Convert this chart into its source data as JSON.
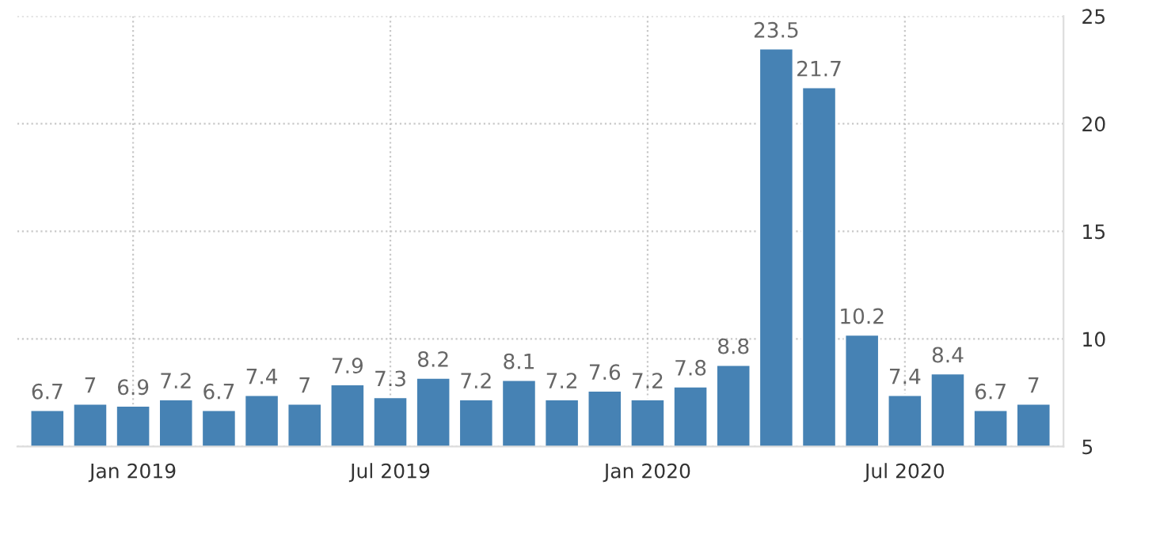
{
  "chart_data": {
    "type": "bar",
    "categories": [
      null,
      null,
      "Jan 2019",
      null,
      null,
      null,
      null,
      null,
      "Jul 2019",
      null,
      null,
      null,
      null,
      null,
      "Jan 2020",
      null,
      null,
      null,
      null,
      null,
      "Jul 2020",
      null,
      null,
      null
    ],
    "values": [
      6.7,
      7,
      6.9,
      7.2,
      6.7,
      7.4,
      7,
      7.9,
      7.3,
      8.2,
      7.2,
      8.1,
      7.2,
      7.6,
      7.2,
      7.8,
      8.8,
      23.5,
      21.7,
      10.2,
      7.4,
      8.4,
      6.7,
      7
    ],
    "color": "#4682b4",
    "ylim": [
      5,
      25
    ],
    "yticks": [
      5,
      10,
      15,
      20,
      25
    ],
    "grid": true,
    "data_labels": true
  }
}
